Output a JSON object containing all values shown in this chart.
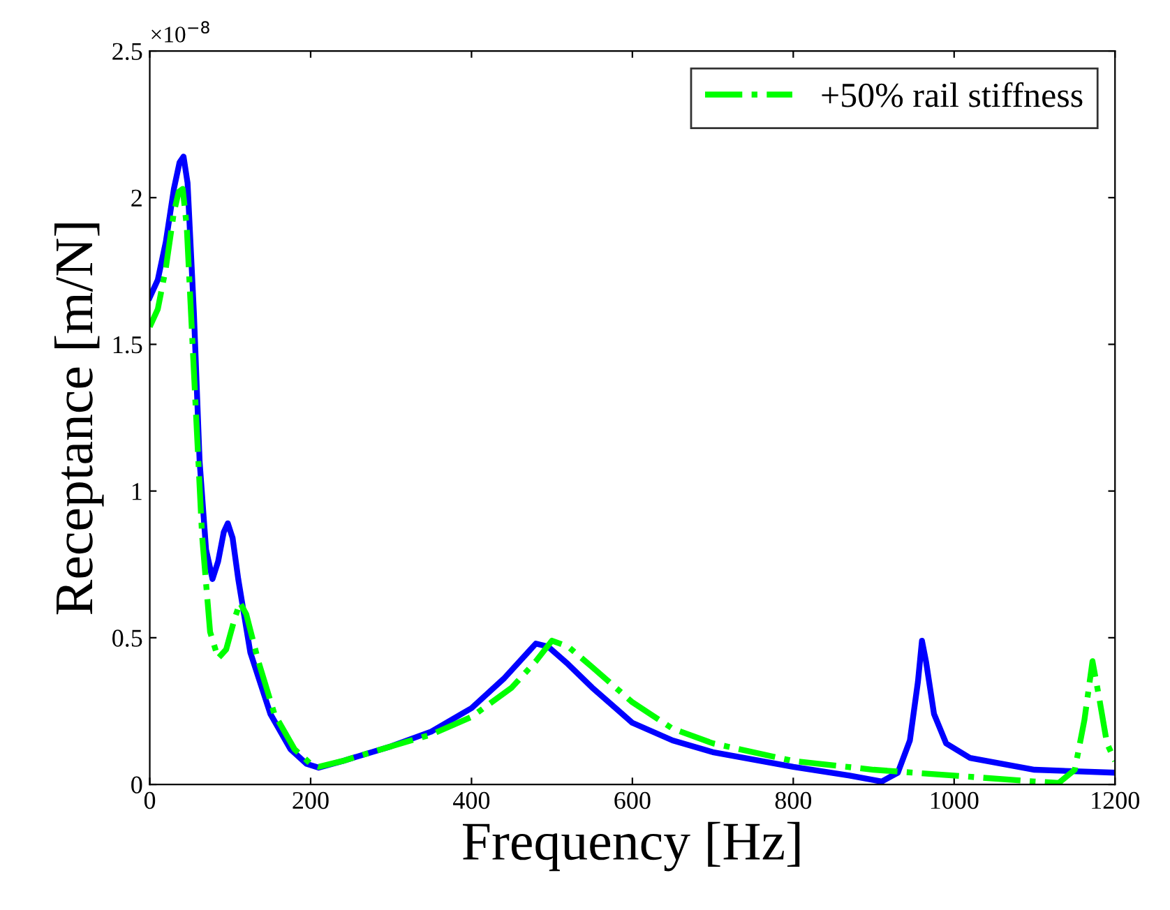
{
  "chart_data": {
    "type": "line",
    "xlabel": "Frequency [Hz]",
    "ylabel": "Receptance [m/N]",
    "annotations": [
      "×10$^{−8}$"
    ],
    "xlim": [
      0,
      1200
    ],
    "xticks": [
      0,
      200,
      400,
      600,
      800,
      1000,
      1200
    ],
    "ylim": [
      0,
      2.5
    ],
    "yticks": [
      0,
      0.5,
      1,
      1.5,
      2,
      2.5
    ],
    "legend": "top right",
    "grid": false,
    "series": [
      {
        "color": "#0000ff",
        "line_style": "solid",
        "x": [
          0,
          10,
          20,
          30,
          37,
          42,
          47,
          55,
          62,
          70,
          78,
          85,
          92,
          97,
          103,
          110,
          125,
          150,
          175,
          195,
          210,
          240,
          300,
          350,
          400,
          440,
          470,
          480,
          495,
          520,
          550,
          600,
          650,
          700,
          800,
          870,
          910,
          930,
          945,
          955,
          960,
          965,
          975,
          990,
          1020,
          1100,
          1200
        ],
        "values": [
          1.66,
          1.72,
          1.85,
          2.03,
          2.12,
          2.14,
          2.05,
          1.6,
          1.1,
          0.8,
          0.7,
          0.76,
          0.86,
          0.89,
          0.84,
          0.7,
          0.45,
          0.24,
          0.12,
          0.07,
          0.057,
          0.08,
          0.13,
          0.18,
          0.26,
          0.36,
          0.45,
          0.48,
          0.47,
          0.41,
          0.33,
          0.21,
          0.15,
          0.11,
          0.06,
          0.03,
          0.01,
          0.04,
          0.15,
          0.35,
          0.49,
          0.42,
          0.24,
          0.14,
          0.09,
          0.05,
          0.04
        ]
      },
      {
        "name": "+50% rail stiffness",
        "color": "#00ff00",
        "line_style": "dashdot",
        "x": [
          0,
          10,
          20,
          30,
          36,
          41,
          46,
          55,
          65,
          75,
          85,
          95,
          105,
          112,
          120,
          135,
          155,
          180,
          200,
          210,
          240,
          300,
          350,
          400,
          450,
          480,
          500,
          520,
          550,
          600,
          650,
          700,
          800,
          900,
          1000,
          1100,
          1130,
          1150,
          1162,
          1172,
          1180,
          1190,
          1200
        ],
        "values": [
          1.56,
          1.62,
          1.76,
          1.95,
          2.02,
          2.03,
          1.9,
          1.4,
          0.85,
          0.52,
          0.43,
          0.46,
          0.56,
          0.62,
          0.58,
          0.42,
          0.24,
          0.12,
          0.07,
          0.06,
          0.08,
          0.13,
          0.17,
          0.23,
          0.33,
          0.42,
          0.49,
          0.47,
          0.4,
          0.28,
          0.19,
          0.14,
          0.08,
          0.05,
          0.03,
          0.01,
          0.005,
          0.05,
          0.22,
          0.42,
          0.3,
          0.14,
          0.08
        ]
      }
    ]
  }
}
